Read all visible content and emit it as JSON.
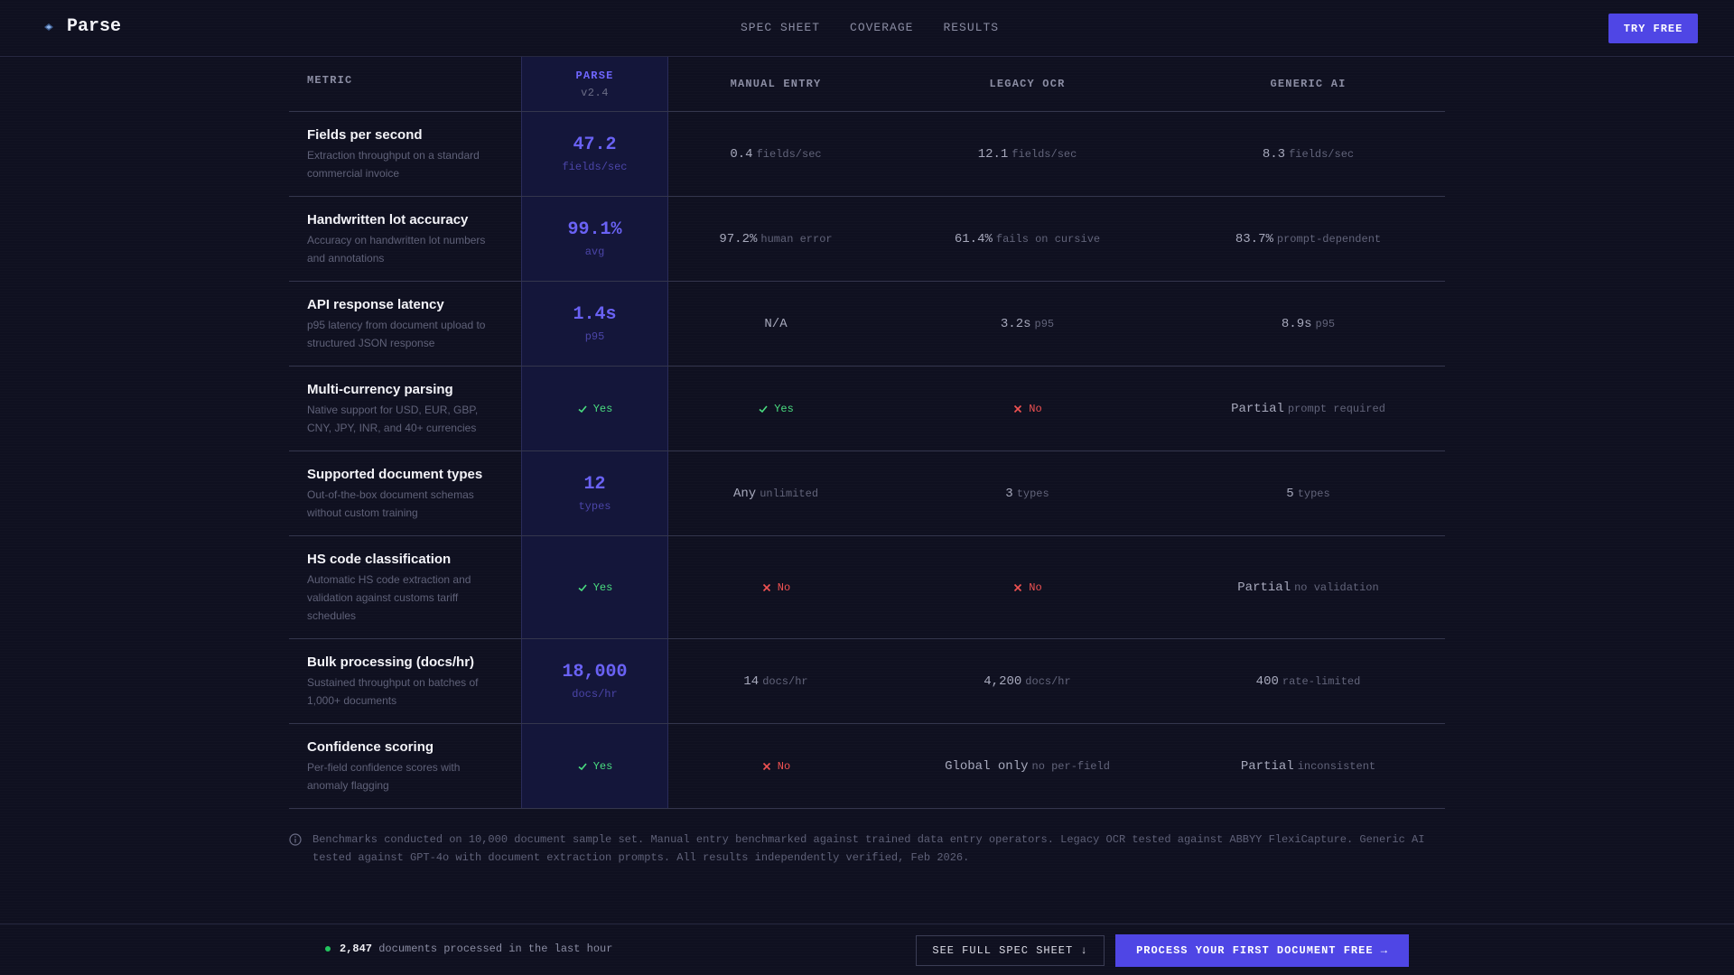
{
  "header": {
    "brand": "Parse",
    "nav": [
      "SPEC SHEET",
      "COVERAGE",
      "RESULTS"
    ],
    "cta": "TRY FREE"
  },
  "table": {
    "headers": {
      "metric": "METRIC",
      "parse": "PARSE",
      "parse_version": "v2.4",
      "manual": "MANUAL ENTRY",
      "legacy": "LEGACY OCR",
      "generic": "GENERIC AI"
    },
    "rows": [
      {
        "title": "Fields per second",
        "desc": "Extraction throughput on a standard commercial invoice",
        "parse": {
          "value": "47.2",
          "unit": "fields/sec"
        },
        "manual": {
          "kind": "text",
          "value": "0.4",
          "unit": "fields/sec"
        },
        "legacy": {
          "kind": "text",
          "value": "12.1",
          "unit": "fields/sec"
        },
        "generic": {
          "kind": "text",
          "value": "8.3",
          "unit": "fields/sec"
        }
      },
      {
        "title": "Handwritten lot accuracy",
        "desc": "Accuracy on handwritten lot numbers and annotations",
        "parse": {
          "value": "99.1%",
          "unit": "avg"
        },
        "manual": {
          "kind": "text",
          "value": "97.2%",
          "unit": "human error"
        },
        "legacy": {
          "kind": "text",
          "value": "61.4%",
          "unit": "fails on cursive"
        },
        "generic": {
          "kind": "text",
          "value": "83.7%",
          "unit": "prompt-dependent"
        }
      },
      {
        "title": "API response latency",
        "desc": "p95 latency from document upload to structured JSON response",
        "parse": {
          "value": "1.4s",
          "unit": "p95"
        },
        "manual": {
          "kind": "text",
          "value": "N/A",
          "unit": ""
        },
        "legacy": {
          "kind": "text",
          "value": "3.2s",
          "unit": "p95"
        },
        "generic": {
          "kind": "text",
          "value": "8.9s",
          "unit": "p95"
        }
      },
      {
        "title": "Multi-currency parsing",
        "desc": "Native support for USD, EUR, GBP, CNY, JPY, INR, and 40+ currencies",
        "parse": {
          "kind": "yes",
          "label": "Yes"
        },
        "manual": {
          "kind": "yes",
          "label": "Yes"
        },
        "legacy": {
          "kind": "no",
          "label": "No"
        },
        "generic": {
          "kind": "text",
          "value": "Partial",
          "unit": "prompt required"
        }
      },
      {
        "title": "Supported document types",
        "desc": "Out-of-the-box document schemas without custom training",
        "parse": {
          "value": "12",
          "unit": "types"
        },
        "manual": {
          "kind": "text",
          "value": "Any",
          "unit": "unlimited"
        },
        "legacy": {
          "kind": "text",
          "value": "3",
          "unit": "types"
        },
        "generic": {
          "kind": "text",
          "value": "5",
          "unit": "types"
        }
      },
      {
        "title": "HS code classification",
        "desc": "Automatic HS code extraction and validation against customs tariff schedules",
        "parse": {
          "kind": "yes",
          "label": "Yes"
        },
        "manual": {
          "kind": "no",
          "label": "No"
        },
        "legacy": {
          "kind": "no",
          "label": "No"
        },
        "generic": {
          "kind": "text",
          "value": "Partial",
          "unit": "no validation"
        }
      },
      {
        "title": "Bulk processing (docs/hr)",
        "desc": "Sustained throughput on batches of 1,000+ documents",
        "parse": {
          "value": "18,000",
          "unit": "docs/hr"
        },
        "manual": {
          "kind": "text",
          "value": "14",
          "unit": "docs/hr"
        },
        "legacy": {
          "kind": "text",
          "value": "4,200",
          "unit": "docs/hr"
        },
        "generic": {
          "kind": "text",
          "value": "400",
          "unit": "rate-limited"
        }
      },
      {
        "title": "Confidence scoring",
        "desc": "Per-field confidence scores with anomaly flagging",
        "parse": {
          "kind": "yes",
          "label": "Yes"
        },
        "manual": {
          "kind": "no",
          "label": "No"
        },
        "legacy": {
          "kind": "text",
          "value": "Global only",
          "unit": "no per-field"
        },
        "generic": {
          "kind": "text",
          "value": "Partial",
          "unit": "inconsistent"
        }
      }
    ]
  },
  "footnote": "Benchmarks conducted on 10,000 document sample set. Manual entry benchmarked against trained data entry operators. Legacy OCR tested against ABBYY FlexiCapture. Generic AI tested against GPT-4o with document extraction prompts. All results independently verified, Feb 2026.",
  "bottom": {
    "count": "2,847",
    "count_label": "documents processed in the last hour",
    "spec_button": "SEE FULL SPEC SHEET ↓",
    "cta_button": "PROCESS YOUR FIRST DOCUMENT FREE →"
  },
  "colors": {
    "accent": "#4f46e5",
    "yes": "#4ade80",
    "no": "#f05252",
    "background": "#0f1020"
  }
}
